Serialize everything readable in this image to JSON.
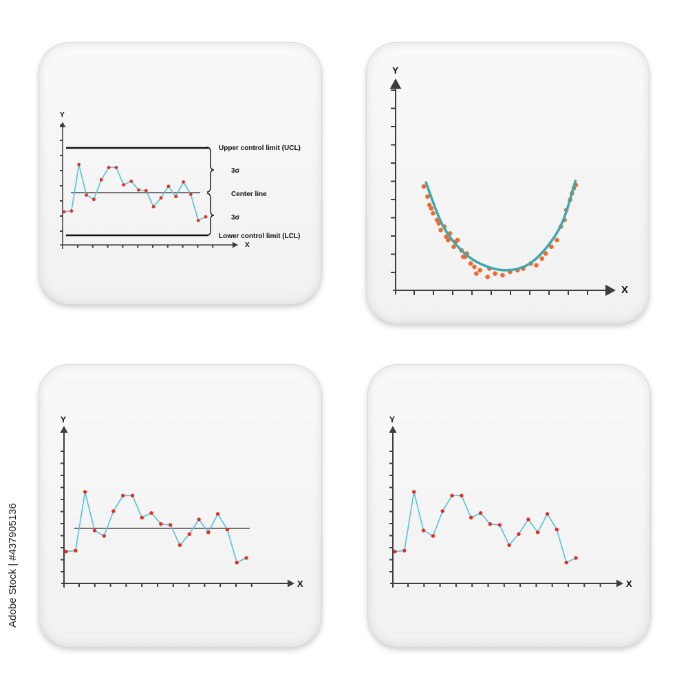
{
  "side_text": "Adobe Stock | #437905136",
  "colors": {
    "line": "#5cc3de",
    "dots": "#e0301e",
    "scatter": "#ee6a2b",
    "curve": "#3ea7b2",
    "axis": "#3d3d3d"
  },
  "chart_data": [
    {
      "type": "line",
      "title": "",
      "xlabel": "X",
      "ylabel": "Y",
      "values": [
        0.17,
        0.18,
        0.82,
        0.4,
        0.34,
        0.61,
        0.78,
        0.78,
        0.54,
        0.59,
        0.47,
        0.46,
        0.24,
        0.36,
        0.52,
        0.38,
        0.58,
        0.41,
        0.05,
        0.1
      ],
      "ylim": [
        -0.2,
        1.2
      ],
      "center_line": 0.5,
      "upper_control_limit": 1.0,
      "lower_control_limit": -0.1,
      "annotations": {
        "ucl": "Upper control limit (UCL)",
        "center": "Center line",
        "lcl": "Lower control limit (LCL)",
        "sigma_upper": "3σ",
        "sigma_lower": "3σ"
      },
      "x_ticks": 12,
      "y_ticks": 11,
      "grid": false
    },
    {
      "type": "scatter",
      "title": "",
      "xlabel": "X",
      "ylabel": "Y",
      "x": [
        1.5,
        1.7,
        1.8,
        2.0,
        2.2,
        2.4,
        2.6,
        2.7,
        2.9,
        3.1,
        3.3,
        3.5,
        3.6,
        3.8,
        4.0,
        4.2,
        4.5,
        4.9,
        5.3,
        5.7,
        6.1,
        6.5,
        6.8,
        7.2,
        7.5,
        7.8,
        8.0,
        8.3,
        8.6,
        8.8,
        9.0,
        9.1,
        9.3,
        9.4,
        9.5,
        9.6,
        1.9,
        2.3,
        2.8,
        3.2,
        3.7,
        4.3,
        5.0
      ],
      "y": [
        6.2,
        5.6,
        5.1,
        4.6,
        4.2,
        3.6,
        3.8,
        3.2,
        3.4,
        2.6,
        3.0,
        2.4,
        2.0,
        2.2,
        1.6,
        1.4,
        1.2,
        0.8,
        1.0,
        0.9,
        1.1,
        1.2,
        1.3,
        1.6,
        1.5,
        1.9,
        2.2,
        2.6,
        3.0,
        3.8,
        4.2,
        4.8,
        5.4,
        5.8,
        6.1,
        6.3,
        4.9,
        4.0,
        3.0,
        2.9,
        2.0,
        1.0,
        1.3
      ],
      "trend": "quadratic",
      "trend_curve": {
        "x": [
          1.6,
          2.5,
          3.5,
          4.5,
          5.8,
          7.0,
          8.0,
          8.9,
          9.6
        ],
        "y": [
          6.5,
          3.9,
          2.4,
          1.6,
          1.2,
          1.5,
          2.5,
          4.1,
          6.6
        ]
      },
      "xlim": [
        0,
        11
      ],
      "ylim": [
        0,
        12
      ],
      "x_ticks": 10,
      "y_ticks": 11,
      "grid": false
    },
    {
      "type": "line",
      "title": "",
      "xlabel": "X",
      "ylabel": "Y",
      "values": [
        0.17,
        0.18,
        0.82,
        0.4,
        0.34,
        0.61,
        0.78,
        0.78,
        0.54,
        0.59,
        0.47,
        0.46,
        0.24,
        0.36,
        0.52,
        0.38,
        0.58,
        0.41,
        0.05,
        0.1
      ],
      "ylim": [
        -0.2,
        1.6
      ],
      "reference_line": 0.38,
      "x_ticks": 12,
      "y_ticks": 11,
      "grid": false
    },
    {
      "type": "line",
      "title": "",
      "xlabel": "X",
      "ylabel": "Y",
      "values": [
        0.17,
        0.18,
        0.82,
        0.4,
        0.34,
        0.61,
        0.78,
        0.78,
        0.54,
        0.59,
        0.47,
        0.46,
        0.24,
        0.36,
        0.52,
        0.38,
        0.58,
        0.41,
        0.05,
        0.1
      ],
      "ylim": [
        -0.2,
        1.6
      ],
      "x_ticks": 13,
      "y_ticks": 11,
      "grid": false
    }
  ]
}
